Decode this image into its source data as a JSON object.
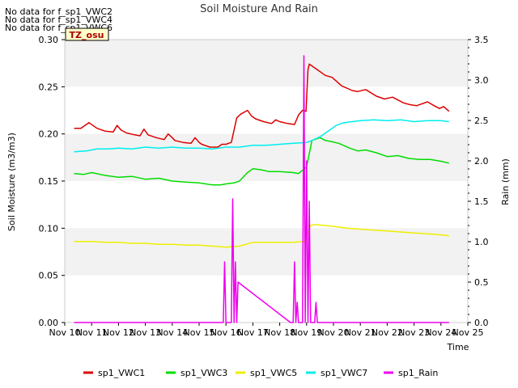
{
  "chart_data": {
    "type": "line",
    "title": "Soil Moisture And Rain",
    "xlabel": "Time",
    "ylabel": "Soil Moisture (m3/m3)",
    "y2label": "Rain (mm)",
    "badge": "TZ_osu",
    "no_data": [
      "No data for f_sp1_VWC2",
      "No data for f_sp1_VWC4",
      "No data for f_sp1_VWC6"
    ],
    "xlim": [
      10,
      25
    ],
    "ylim": [
      0,
      0.3
    ],
    "y2lim": [
      0,
      3.5
    ],
    "x_ticks": [
      {
        "v": 10,
        "label": "Nov 10"
      },
      {
        "v": 11,
        "label": "Nov 11"
      },
      {
        "v": 12,
        "label": "Nov 12"
      },
      {
        "v": 13,
        "label": "Nov 13"
      },
      {
        "v": 14,
        "label": "Nov 14"
      },
      {
        "v": 15,
        "label": "Nov 15"
      },
      {
        "v": 16,
        "label": "Nov 16"
      },
      {
        "v": 17,
        "label": "Nov 17"
      },
      {
        "v": 18,
        "label": "Nov 18"
      },
      {
        "v": 19,
        "label": "Nov 19"
      },
      {
        "v": 20,
        "label": "Nov 20"
      },
      {
        "v": 21,
        "label": "Nov 21"
      },
      {
        "v": 22,
        "label": "Nov 22"
      },
      {
        "v": 23,
        "label": "Nov 23"
      },
      {
        "v": 24,
        "label": "Nov 24"
      },
      {
        "v": 25,
        "label": "Nov 25"
      }
    ],
    "y_ticks": [
      {
        "v": 0.0,
        "label": "0.00"
      },
      {
        "v": 0.05,
        "label": "0.05"
      },
      {
        "v": 0.1,
        "label": "0.10"
      },
      {
        "v": 0.15,
        "label": "0.15"
      },
      {
        "v": 0.2,
        "label": "0.20"
      },
      {
        "v": 0.25,
        "label": "0.25"
      },
      {
        "v": 0.3,
        "label": "0.30"
      }
    ],
    "y2_ticks": [
      {
        "v": 0.0,
        "label": "0.0"
      },
      {
        "v": 0.5,
        "label": "0.5"
      },
      {
        "v": 1.0,
        "label": "1.0"
      },
      {
        "v": 1.5,
        "label": "1.5"
      },
      {
        "v": 2.0,
        "label": "2.0"
      },
      {
        "v": 2.5,
        "label": "2.5"
      },
      {
        "v": 3.0,
        "label": "3.0"
      },
      {
        "v": 3.5,
        "label": "3.5"
      }
    ],
    "grid": "horizontal bands",
    "legend_position": "bottom",
    "series": [
      {
        "name": "sp1_VWC1",
        "color": "#dd0000",
        "axis": "left",
        "x": [
          10.35,
          10.6,
          10.9,
          11.2,
          11.5,
          11.8,
          11.95,
          12.1,
          12.3,
          12.6,
          12.8,
          12.95,
          13.1,
          13.4,
          13.7,
          13.85,
          14.0,
          14.1,
          14.4,
          14.7,
          14.85,
          15.0,
          15.1,
          15.4,
          15.7,
          15.85,
          16.0,
          16.1,
          16.2,
          16.4,
          16.55,
          16.8,
          16.95,
          17.1,
          17.4,
          17.7,
          17.85,
          18.0,
          18.3,
          18.55,
          18.7,
          18.85,
          18.98,
          19.05,
          19.1,
          19.4,
          19.7,
          19.95,
          20.3,
          20.7,
          20.9,
          21.2,
          21.6,
          21.9,
          22.2,
          22.6,
          22.85,
          23.1,
          23.5,
          23.8,
          23.95,
          24.1,
          24.3
        ],
        "y": [
          0.206,
          0.206,
          0.212,
          0.206,
          0.203,
          0.202,
          0.209,
          0.204,
          0.201,
          0.199,
          0.198,
          0.205,
          0.199,
          0.196,
          0.194,
          0.2,
          0.196,
          0.193,
          0.191,
          0.19,
          0.196,
          0.191,
          0.189,
          0.186,
          0.186,
          0.189,
          0.189,
          0.19,
          0.191,
          0.217,
          0.221,
          0.225,
          0.219,
          0.216,
          0.213,
          0.211,
          0.215,
          0.213,
          0.211,
          0.21,
          0.22,
          0.225,
          0.224,
          0.268,
          0.274,
          0.268,
          0.262,
          0.26,
          0.251,
          0.246,
          0.245,
          0.247,
          0.24,
          0.237,
          0.239,
          0.233,
          0.231,
          0.23,
          0.234,
          0.229,
          0.227,
          0.229,
          0.224
        ]
      },
      {
        "name": "sp1_VWC3",
        "color": "#00dd00",
        "axis": "left",
        "x": [
          10.35,
          10.7,
          11.0,
          11.5,
          12.0,
          12.5,
          13.0,
          13.5,
          14.0,
          14.5,
          15.0,
          15.5,
          15.8,
          16.0,
          16.3,
          16.5,
          16.8,
          17.0,
          17.3,
          17.6,
          18.0,
          18.5,
          18.7,
          19.0,
          19.2,
          19.5,
          19.7,
          19.9,
          20.2,
          20.6,
          20.9,
          21.2,
          21.6,
          22.0,
          22.4,
          22.8,
          23.2,
          23.6,
          24.0,
          24.3
        ],
        "y": [
          0.158,
          0.157,
          0.159,
          0.156,
          0.154,
          0.155,
          0.152,
          0.153,
          0.15,
          0.149,
          0.148,
          0.146,
          0.146,
          0.147,
          0.148,
          0.15,
          0.159,
          0.163,
          0.162,
          0.16,
          0.16,
          0.159,
          0.158,
          0.165,
          0.193,
          0.196,
          0.193,
          0.192,
          0.19,
          0.185,
          0.182,
          0.183,
          0.18,
          0.176,
          0.177,
          0.174,
          0.173,
          0.173,
          0.171,
          0.169
        ]
      },
      {
        "name": "sp1_VWC5",
        "color": "#eeee00",
        "axis": "left",
        "x": [
          10.35,
          11.0,
          11.5,
          12.0,
          12.5,
          13.0,
          13.5,
          14.0,
          14.5,
          15.0,
          15.5,
          16.0,
          16.5,
          17.0,
          17.5,
          18.0,
          18.5,
          18.9,
          19.05,
          19.15,
          19.3,
          19.6,
          20.0,
          20.5,
          21.0,
          21.5,
          22.0,
          22.5,
          23.0,
          23.5,
          24.0,
          24.3
        ],
        "y": [
          0.086,
          0.086,
          0.085,
          0.085,
          0.084,
          0.084,
          0.083,
          0.083,
          0.082,
          0.082,
          0.081,
          0.08,
          0.081,
          0.085,
          0.085,
          0.085,
          0.085,
          0.086,
          0.095,
          0.103,
          0.104,
          0.103,
          0.102,
          0.1,
          0.099,
          0.098,
          0.097,
          0.096,
          0.095,
          0.094,
          0.093,
          0.092
        ]
      },
      {
        "name": "sp1_VWC7",
        "color": "#00eeee",
        "axis": "left",
        "x": [
          10.35,
          10.8,
          11.2,
          11.6,
          12.0,
          12.5,
          13.0,
          13.5,
          14.0,
          14.5,
          15.0,
          15.5,
          16.0,
          16.5,
          17.0,
          17.5,
          18.0,
          18.5,
          19.0,
          19.2,
          19.5,
          19.8,
          20.1,
          20.4,
          20.7,
          21.0,
          21.5,
          22.0,
          22.5,
          23.0,
          23.5,
          24.0,
          24.3
        ],
        "y": [
          0.181,
          0.182,
          0.184,
          0.184,
          0.185,
          0.184,
          0.186,
          0.185,
          0.186,
          0.185,
          0.185,
          0.184,
          0.186,
          0.186,
          0.188,
          0.188,
          0.189,
          0.19,
          0.191,
          0.193,
          0.197,
          0.203,
          0.209,
          0.212,
          0.213,
          0.214,
          0.215,
          0.214,
          0.215,
          0.213,
          0.214,
          0.214,
          0.213
        ]
      },
      {
        "name": "sp1_Rain",
        "color": "#ee00ee",
        "axis": "right",
        "x": [
          10.35,
          15.9,
          15.95,
          16.0,
          16.2,
          16.25,
          16.3,
          16.35,
          16.4,
          16.45,
          18.4,
          18.5,
          18.55,
          18.6,
          18.65,
          18.7,
          18.85,
          18.9,
          18.95,
          19.0,
          19.05,
          19.1,
          19.15,
          19.2,
          19.25,
          19.3,
          19.35,
          19.4,
          19.45,
          24.3
        ],
        "y": [
          0,
          0,
          0.75,
          0,
          0,
          1.53,
          0,
          0.75,
          0,
          0.5,
          0,
          0,
          0.75,
          0,
          0.25,
          0,
          0,
          3.3,
          0,
          2.0,
          0,
          1.5,
          0,
          0,
          0,
          0,
          0.25,
          0,
          0,
          0
        ]
      }
    ]
  }
}
